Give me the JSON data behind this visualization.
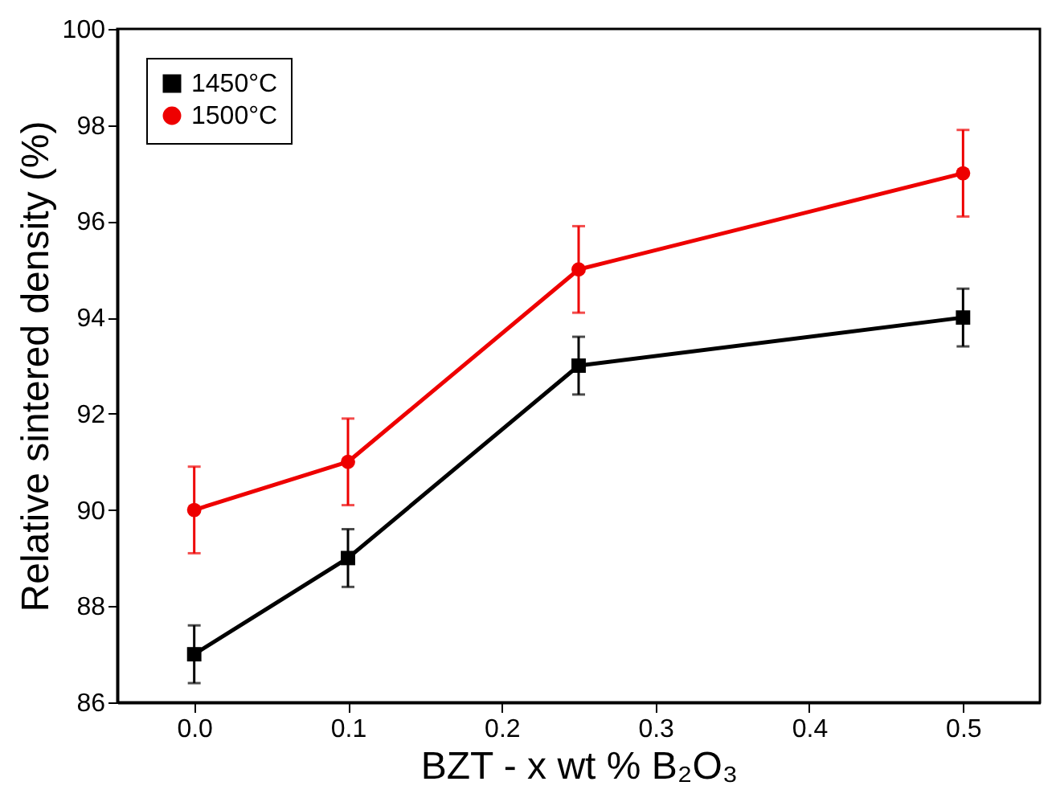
{
  "chart_data": {
    "type": "line",
    "xlabel": "BZT - x wt % B₂O₃",
    "ylabel": "Relative sintered density (%)",
    "x": [
      0.0,
      0.1,
      0.25,
      0.5
    ],
    "series": [
      {
        "name": "1450°C",
        "color": "#000000",
        "marker": "square",
        "values": [
          87,
          89,
          93,
          94
        ],
        "errors": [
          0.6,
          0.6,
          0.6,
          0.6
        ]
      },
      {
        "name": "1500°C",
        "color": "#ee0000",
        "marker": "circle",
        "values": [
          90,
          91,
          95,
          97
        ],
        "errors": [
          0.9,
          0.9,
          0.9,
          0.9
        ]
      }
    ],
    "xlim": [
      -0.05,
      0.55
    ],
    "xticks": [
      {
        "value": 0.0,
        "label": "0.0"
      },
      0.1,
      0.2,
      0.3,
      0.4,
      0.5
    ],
    "ylim": [
      86,
      100
    ],
    "yticks": [
      86,
      88,
      90,
      92,
      94,
      96,
      98,
      100
    ],
    "grid": false,
    "legend": "top left"
  }
}
